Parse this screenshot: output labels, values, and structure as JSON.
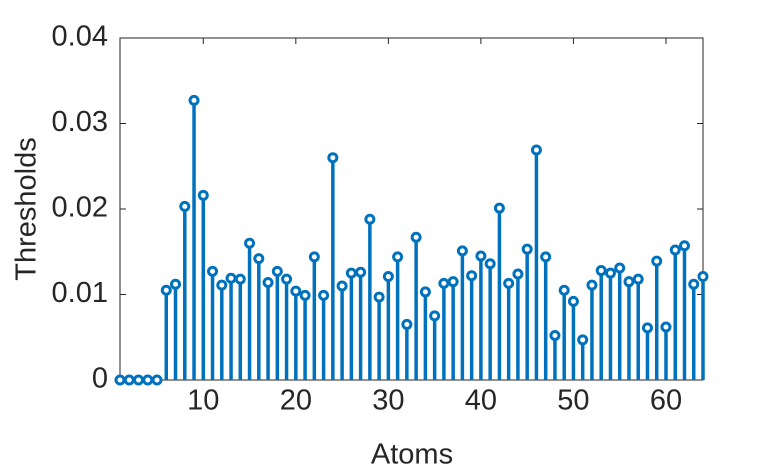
{
  "chart_data": {
    "type": "stem",
    "x_label": "Atoms",
    "y_label": "Thresholds",
    "x": [
      1,
      2,
      3,
      4,
      5,
      6,
      7,
      8,
      9,
      10,
      11,
      12,
      13,
      14,
      15,
      16,
      17,
      18,
      19,
      20,
      21,
      22,
      23,
      24,
      25,
      26,
      27,
      28,
      29,
      30,
      31,
      32,
      33,
      34,
      35,
      36,
      37,
      38,
      39,
      40,
      41,
      42,
      43,
      44,
      45,
      46,
      47,
      48,
      49,
      50,
      51,
      52,
      53,
      54,
      55,
      56,
      57,
      58,
      59,
      60,
      61,
      62,
      63,
      64
    ],
    "values": [
      0,
      0,
      0,
      0,
      0,
      0.0105,
      0.0112,
      0.0203,
      0.0327,
      0.0216,
      0.0127,
      0.0111,
      0.0119,
      0.0118,
      0.016,
      0.0142,
      0.0114,
      0.0127,
      0.0118,
      0.0104,
      0.0099,
      0.0144,
      0.0099,
      0.026,
      0.011,
      0.0125,
      0.0126,
      0.0188,
      0.0097,
      0.0121,
      0.0144,
      0.0065,
      0.0167,
      0.0103,
      0.0075,
      0.0113,
      0.0115,
      0.0151,
      0.0122,
      0.0145,
      0.0136,
      0.0201,
      0.0113,
      0.0124,
      0.0153,
      0.0269,
      0.0144,
      0.0052,
      0.0105,
      0.0092,
      0.0047,
      0.0111,
      0.0128,
      0.0125,
      0.0131,
      0.0115,
      0.0118,
      0.0061,
      0.0139,
      0.0062,
      0.0152,
      0.0157,
      0.0112,
      0.0121
    ],
    "color": "#0072bd",
    "xlim": [
      1,
      64
    ],
    "xticks": [
      10,
      20,
      30,
      40,
      50,
      60
    ],
    "ylim": [
      0,
      0.04
    ],
    "yticks": [
      0,
      0.01,
      0.02,
      0.03,
      0.04
    ]
  }
}
